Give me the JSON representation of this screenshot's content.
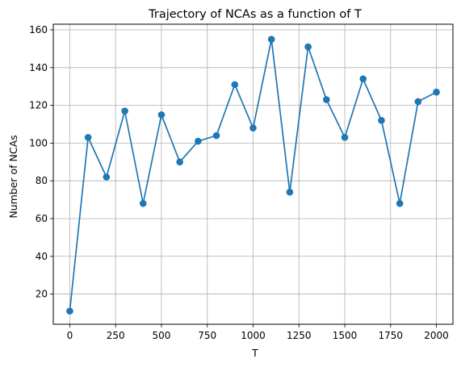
{
  "chart_data": {
    "type": "line",
    "title": "Trajectory of NCAs as a function of T",
    "xlabel": "T",
    "ylabel": "Number of NCAs",
    "xlim": [
      -90,
      2090
    ],
    "ylim": [
      4,
      163
    ],
    "xticks": [
      0,
      250,
      500,
      750,
      1000,
      1250,
      1500,
      1750,
      2000
    ],
    "yticks": [
      20,
      40,
      60,
      80,
      100,
      120,
      140,
      160
    ],
    "grid": true,
    "marker": "circle",
    "series": [
      {
        "color": "#1f77b4",
        "x": [
          0,
          100,
          200,
          300,
          400,
          500,
          600,
          700,
          800,
          900,
          1000,
          1100,
          1200,
          1300,
          1400,
          1500,
          1600,
          1700,
          1800,
          1900,
          2000
        ],
        "y": [
          11,
          103,
          82,
          117,
          68,
          115,
          90,
          101,
          104,
          131,
          108,
          155,
          74,
          151,
          123,
          103,
          134,
          112,
          68,
          122,
          127
        ]
      }
    ]
  }
}
